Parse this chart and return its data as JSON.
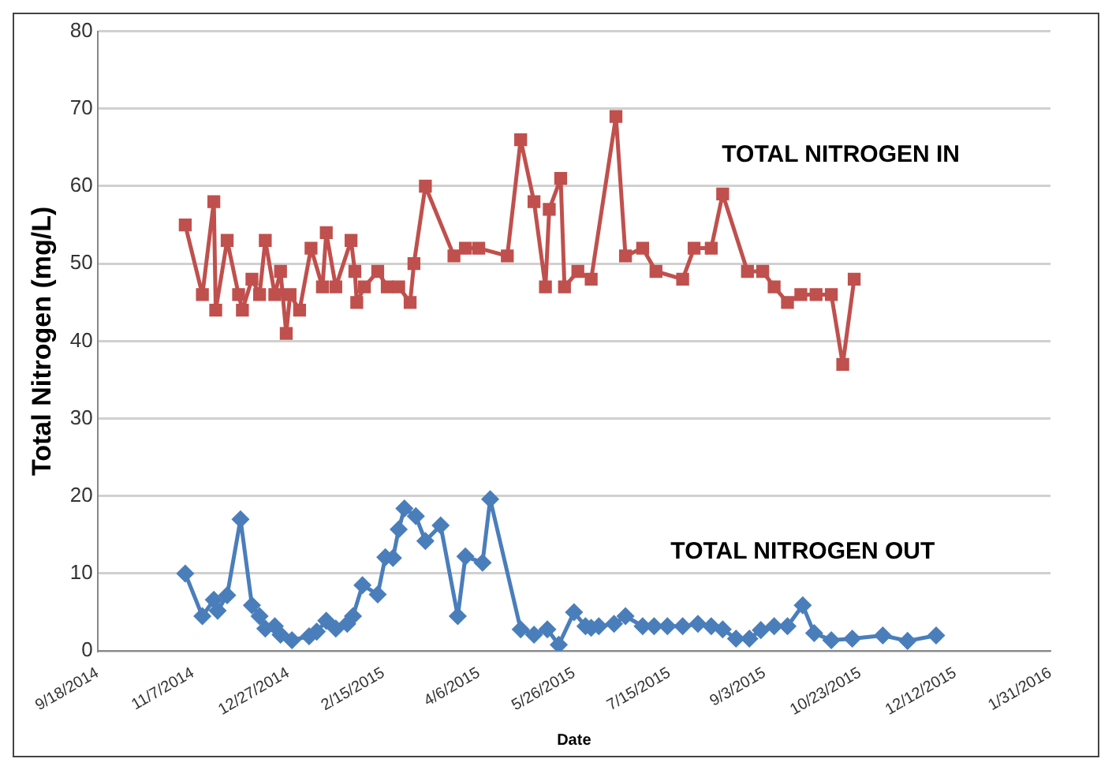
{
  "chart_data": {
    "type": "line",
    "xlabel": "Date",
    "ylabel": "Total Nitrogen (mg/L)",
    "xlim": [
      "2014-09-18",
      "2016-01-31"
    ],
    "xticks": [
      {
        "value": "2014-09-18",
        "label": "9/18/2014"
      },
      {
        "value": "2014-11-07",
        "label": "11/7/2014"
      },
      {
        "value": "2014-12-27",
        "label": "12/27/2014"
      },
      {
        "value": "2015-02-15",
        "label": "2/15/2015"
      },
      {
        "value": "2015-04-06",
        "label": "4/6/2015"
      },
      {
        "value": "2015-05-26",
        "label": "5/26/2015"
      },
      {
        "value": "2015-07-15",
        "label": "7/15/2015"
      },
      {
        "value": "2015-09-03",
        "label": "9/3/2015"
      },
      {
        "value": "2015-10-23",
        "label": "10/23/2015"
      },
      {
        "value": "2015-12-12",
        "label": "12/12/2015"
      },
      {
        "value": "2016-01-31",
        "label": "1/31/2016"
      }
    ],
    "ylim": [
      0,
      80
    ],
    "yticks": [
      0,
      10,
      20,
      30,
      40,
      50,
      60,
      70,
      80
    ],
    "grid": "y",
    "legend": false,
    "series": [
      {
        "name": "TOTAL NITROGEN IN",
        "color": "#c0504d",
        "marker": "square",
        "x": [
          "2014-11-03",
          "2014-11-12",
          "2014-11-18",
          "2014-11-19",
          "2014-11-25",
          "2014-12-01",
          "2014-12-03",
          "2014-12-08",
          "2014-12-12",
          "2014-12-15",
          "2014-12-20",
          "2014-12-23",
          "2014-12-26",
          "2014-12-28",
          "2015-01-02",
          "2015-01-08",
          "2015-01-14",
          "2015-01-16",
          "2015-01-21",
          "2015-01-29",
          "2015-01-31",
          "2015-02-01",
          "2015-02-05",
          "2015-02-12",
          "2015-02-17",
          "2015-02-23",
          "2015-03-01",
          "2015-03-03",
          "2015-03-09",
          "2015-03-24",
          "2015-03-30",
          "2015-04-06",
          "2015-04-21",
          "2015-04-28",
          "2015-05-05",
          "2015-05-11",
          "2015-05-13",
          "2015-05-19",
          "2015-05-21",
          "2015-05-28",
          "2015-06-04",
          "2015-06-17",
          "2015-06-22",
          "2015-07-01",
          "2015-07-08",
          "2015-07-22",
          "2015-07-28",
          "2015-08-06",
          "2015-08-12",
          "2015-08-25",
          "2015-09-02",
          "2015-09-08",
          "2015-09-15",
          "2015-09-22",
          "2015-09-30",
          "2015-10-08",
          "2015-10-14",
          "2015-10-20"
        ],
        "values": [
          55,
          46,
          58,
          44,
          53,
          46,
          44,
          48,
          46,
          53,
          46,
          49,
          41,
          46,
          44,
          52,
          47,
          54,
          47,
          53,
          49,
          45,
          47,
          49,
          47,
          47,
          45,
          50,
          60,
          51,
          52,
          52,
          51,
          66,
          58,
          47,
          57,
          61,
          47,
          49,
          48,
          69,
          51,
          52,
          49,
          48,
          52,
          52,
          59,
          49,
          49,
          47,
          45,
          46,
          46,
          46,
          37,
          48
        ]
      },
      {
        "name": "TOTAL NITROGEN OUT",
        "color": "#4a7ebb",
        "marker": "diamond",
        "x": [
          "2014-11-03",
          "2014-11-12",
          "2014-11-18",
          "2014-11-20",
          "2014-11-25",
          "2014-12-02",
          "2014-12-08",
          "2014-12-12",
          "2014-12-15",
          "2014-12-20",
          "2014-12-23",
          "2014-12-29",
          "2015-01-07",
          "2015-01-11",
          "2015-01-16",
          "2015-01-21",
          "2015-01-27",
          "2015-01-30",
          "2015-02-04",
          "2015-02-12",
          "2015-02-16",
          "2015-02-20",
          "2015-02-23",
          "2015-02-26",
          "2015-03-04",
          "2015-03-09",
          "2015-03-17",
          "2015-03-26",
          "2015-03-30",
          "2015-04-08",
          "2015-04-12",
          "2015-04-28",
          "2015-05-05",
          "2015-05-12",
          "2015-05-18",
          "2015-05-26",
          "2015-06-01",
          "2015-06-04",
          "2015-06-08",
          "2015-06-16",
          "2015-06-22",
          "2015-07-01",
          "2015-07-07",
          "2015-07-14",
          "2015-07-22",
          "2015-07-30",
          "2015-08-06",
          "2015-08-12",
          "2015-08-19",
          "2015-08-26",
          "2015-09-01",
          "2015-09-08",
          "2015-09-15",
          "2015-09-23",
          "2015-09-29",
          "2015-10-08",
          "2015-10-19",
          "2015-11-04",
          "2015-11-17",
          "2015-12-02"
        ],
        "values": [
          10,
          4.5,
          6.6,
          5.2,
          7.2,
          17,
          5.9,
          4.5,
          2.9,
          3.2,
          2.1,
          1.4,
          1.9,
          2.5,
          3.9,
          2.9,
          3.5,
          4.5,
          8.5,
          7.3,
          12.1,
          12,
          15.7,
          18.4,
          17.4,
          14.2,
          16.2,
          4.5,
          12.2,
          11.4,
          19.6,
          2.8,
          2.1,
          2.8,
          0.8,
          5,
          3.2,
          3,
          3.2,
          3.5,
          4.5,
          3.2,
          3.2,
          3.2,
          3.2,
          3.5,
          3.2,
          2.8,
          1.6,
          1.6,
          2.7,
          3.2,
          3.2,
          5.9,
          2.3,
          1.4,
          1.6,
          2,
          1.3,
          2
        ]
      }
    ]
  }
}
